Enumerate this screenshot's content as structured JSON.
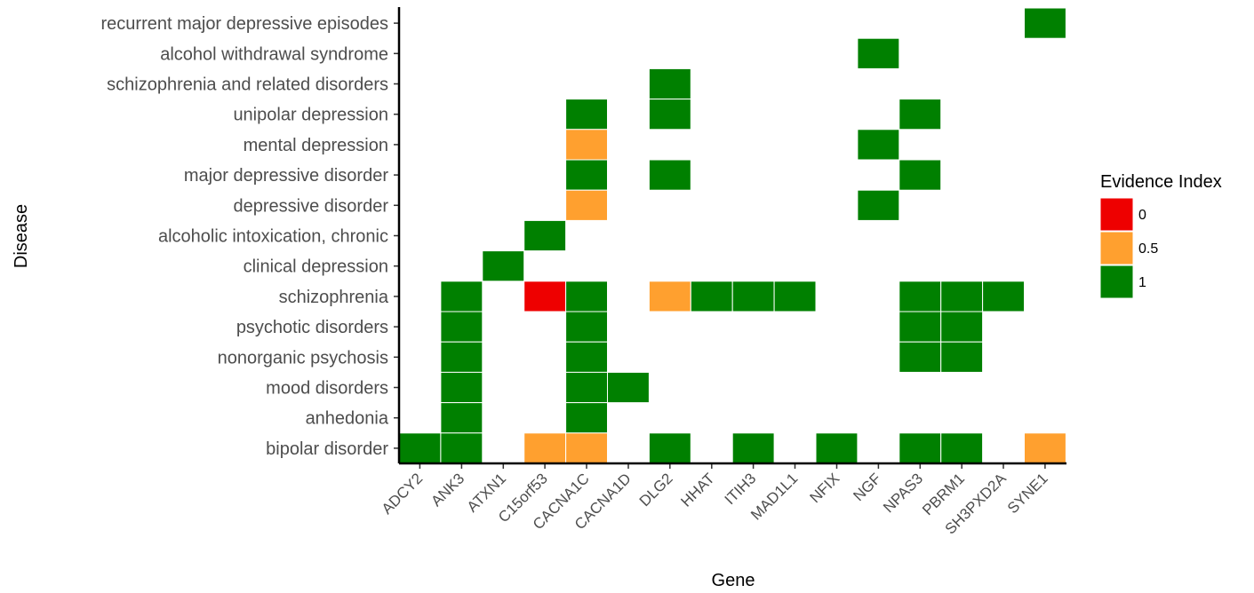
{
  "chart_data": {
    "type": "heatmap",
    "title": "",
    "xlabel": "Gene",
    "ylabel": "Disease",
    "x_categories": [
      "ADCY2",
      "ANK3",
      "ATXN1",
      "C15orf53",
      "CACNA1C",
      "CACNA1D",
      "DLG2",
      "HHAT",
      "ITIH3",
      "MAD1L1",
      "NFIX",
      "NGF",
      "NPAS3",
      "PBRM1",
      "SH3PXD2A",
      "SYNE1"
    ],
    "y_categories": [
      "recurrent major depressive episodes",
      "alcohol withdrawal syndrome",
      "schizophrenia and related disorders",
      "unipolar depression",
      "mental depression",
      "major depressive disorder",
      "depressive disorder",
      "alcoholic intoxication, chronic",
      "clinical depression",
      "schizophrenia",
      "psychotic disorders",
      "nonorganic psychosis",
      "mood disorders",
      "anhedonia",
      "bipolar disorder"
    ],
    "legend": {
      "title": "Evidence Index",
      "placement": "right",
      "entries": [
        {
          "label": "0",
          "value": 0,
          "color": "#ee0000"
        },
        {
          "label": "0.5",
          "value": 0.5,
          "color": "#ffa02f"
        },
        {
          "label": "1",
          "value": 1,
          "color": "#008000"
        }
      ]
    },
    "cells": [
      {
        "gene": "SYNE1",
        "disease": "recurrent major depressive episodes",
        "value": 1
      },
      {
        "gene": "NGF",
        "disease": "alcohol withdrawal syndrome",
        "value": 1
      },
      {
        "gene": "DLG2",
        "disease": "schizophrenia and related disorders",
        "value": 1
      },
      {
        "gene": "CACNA1C",
        "disease": "unipolar depression",
        "value": 1
      },
      {
        "gene": "DLG2",
        "disease": "unipolar depression",
        "value": 1
      },
      {
        "gene": "NPAS3",
        "disease": "unipolar depression",
        "value": 1
      },
      {
        "gene": "CACNA1C",
        "disease": "mental depression",
        "value": 0.5
      },
      {
        "gene": "NGF",
        "disease": "mental depression",
        "value": 1
      },
      {
        "gene": "CACNA1C",
        "disease": "major depressive disorder",
        "value": 1
      },
      {
        "gene": "DLG2",
        "disease": "major depressive disorder",
        "value": 1
      },
      {
        "gene": "NPAS3",
        "disease": "major depressive disorder",
        "value": 1
      },
      {
        "gene": "CACNA1C",
        "disease": "depressive disorder",
        "value": 0.5
      },
      {
        "gene": "NGF",
        "disease": "depressive disorder",
        "value": 1
      },
      {
        "gene": "C15orf53",
        "disease": "alcoholic intoxication, chronic",
        "value": 1
      },
      {
        "gene": "ATXN1",
        "disease": "clinical depression",
        "value": 1
      },
      {
        "gene": "ANK3",
        "disease": "schizophrenia",
        "value": 1
      },
      {
        "gene": "C15orf53",
        "disease": "schizophrenia",
        "value": 0
      },
      {
        "gene": "CACNA1C",
        "disease": "schizophrenia",
        "value": 1
      },
      {
        "gene": "DLG2",
        "disease": "schizophrenia",
        "value": 0.5
      },
      {
        "gene": "HHAT",
        "disease": "schizophrenia",
        "value": 1
      },
      {
        "gene": "ITIH3",
        "disease": "schizophrenia",
        "value": 1
      },
      {
        "gene": "MAD1L1",
        "disease": "schizophrenia",
        "value": 1
      },
      {
        "gene": "NPAS3",
        "disease": "schizophrenia",
        "value": 1
      },
      {
        "gene": "PBRM1",
        "disease": "schizophrenia",
        "value": 1
      },
      {
        "gene": "SH3PXD2A",
        "disease": "schizophrenia",
        "value": 1
      },
      {
        "gene": "ANK3",
        "disease": "psychotic disorders",
        "value": 1
      },
      {
        "gene": "CACNA1C",
        "disease": "psychotic disorders",
        "value": 1
      },
      {
        "gene": "NPAS3",
        "disease": "psychotic disorders",
        "value": 1
      },
      {
        "gene": "PBRM1",
        "disease": "psychotic disorders",
        "value": 1
      },
      {
        "gene": "ANK3",
        "disease": "nonorganic psychosis",
        "value": 1
      },
      {
        "gene": "CACNA1C",
        "disease": "nonorganic psychosis",
        "value": 1
      },
      {
        "gene": "NPAS3",
        "disease": "nonorganic psychosis",
        "value": 1
      },
      {
        "gene": "PBRM1",
        "disease": "nonorganic psychosis",
        "value": 1
      },
      {
        "gene": "ANK3",
        "disease": "mood disorders",
        "value": 1
      },
      {
        "gene": "CACNA1C",
        "disease": "mood disorders",
        "value": 1
      },
      {
        "gene": "CACNA1D",
        "disease": "mood disorders",
        "value": 1
      },
      {
        "gene": "ANK3",
        "disease": "anhedonia",
        "value": 1
      },
      {
        "gene": "CACNA1C",
        "disease": "anhedonia",
        "value": 1
      },
      {
        "gene": "ADCY2",
        "disease": "bipolar disorder",
        "value": 1
      },
      {
        "gene": "ANK3",
        "disease": "bipolar disorder",
        "value": 1
      },
      {
        "gene": "C15orf53",
        "disease": "bipolar disorder",
        "value": 0.5
      },
      {
        "gene": "CACNA1C",
        "disease": "bipolar disorder",
        "value": 0.5
      },
      {
        "gene": "DLG2",
        "disease": "bipolar disorder",
        "value": 1
      },
      {
        "gene": "ITIH3",
        "disease": "bipolar disorder",
        "value": 1
      },
      {
        "gene": "NFIX",
        "disease": "bipolar disorder",
        "value": 1
      },
      {
        "gene": "NPAS3",
        "disease": "bipolar disorder",
        "value": 1
      },
      {
        "gene": "PBRM1",
        "disease": "bipolar disorder",
        "value": 1
      },
      {
        "gene": "SYNE1",
        "disease": "bipolar disorder",
        "value": 0.5
      }
    ]
  }
}
